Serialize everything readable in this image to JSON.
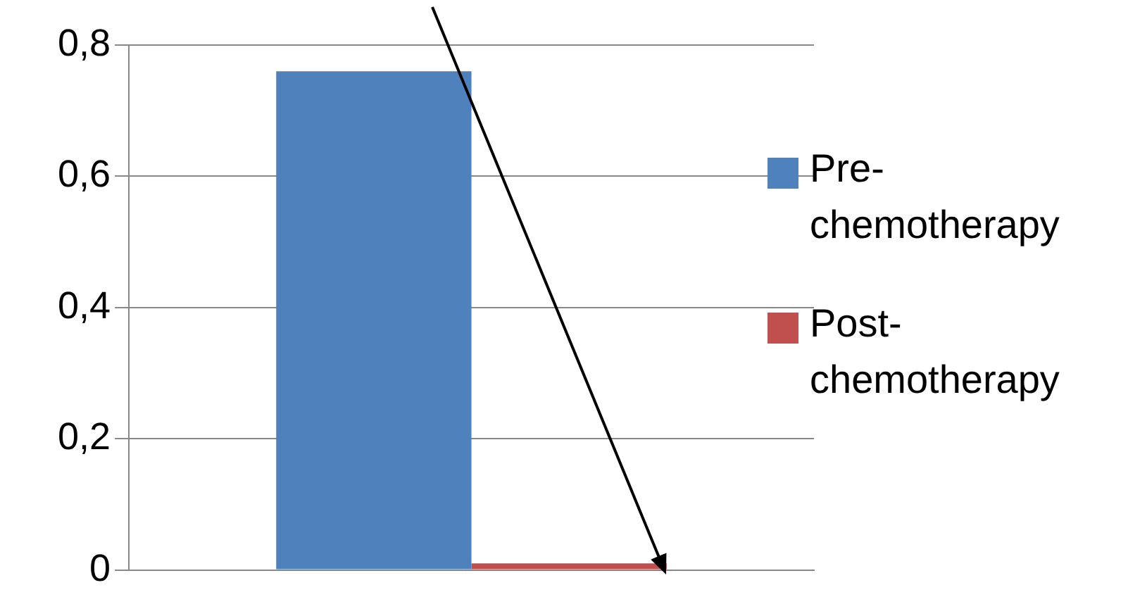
{
  "chart_data": {
    "type": "bar",
    "categories": [
      null
    ],
    "series": [
      {
        "name": "Pre-chemotherapy",
        "color": "#4f81bd",
        "values": [
          0.76
        ]
      },
      {
        "name": "Post-chemotherapy",
        "color": "#c0504d",
        "values": [
          0.01
        ]
      }
    ],
    "ylim": [
      0,
      0.8
    ],
    "yticks": [
      {
        "value": 0,
        "label": "0"
      },
      {
        "value": 0.2,
        "label": "0,2"
      },
      {
        "value": 0.4,
        "label": "0,4"
      },
      {
        "value": 0.6,
        "label": "0,6"
      },
      {
        "value": 0.8,
        "label": "0,8"
      }
    ],
    "grid": "y",
    "legend": "right"
  }
}
